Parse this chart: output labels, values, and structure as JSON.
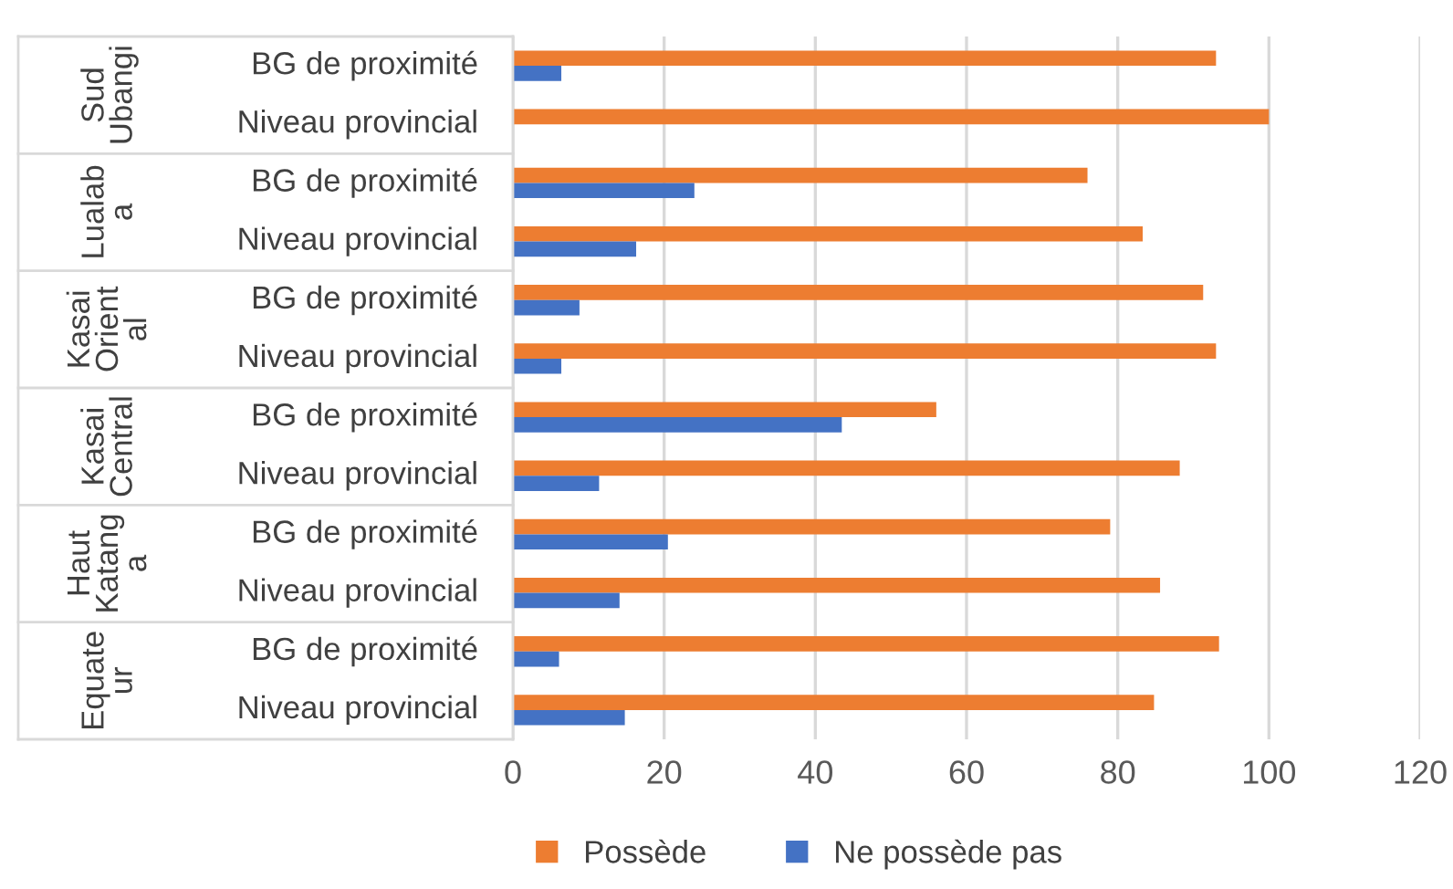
{
  "chart_data": {
    "type": "bar",
    "orientation": "horizontal",
    "categories": [
      "BG de proximité",
      "Niveau provincial",
      "BG de proximité",
      "Niveau provincial",
      "BG de proximité",
      "Niveau provincial",
      "BG de proximité",
      "Niveau provincial",
      "BG de proximité",
      "Niveau provincial",
      "BG de proximité",
      "Niveau provincial"
    ],
    "series": [
      {
        "name": "Possède",
        "color": "#ed7d31",
        "values": [
          93,
          100,
          76,
          83.3,
          91.3,
          93,
          56,
          88.2,
          79,
          85.6,
          93.4,
          84.8
        ]
      },
      {
        "name": "Ne possède pas",
        "color": "#4472c4",
        "values": [
          6.4,
          0,
          24,
          16.3,
          8.8,
          6.4,
          43.5,
          11.4,
          20.5,
          14.1,
          6.1,
          14.8
        ]
      }
    ],
    "annotations": [
      "Sud\nUbangi",
      "Lualab\na",
      "Kasai\nOrient\nal",
      "Kasai\nCentral",
      "Haut\nKatang\na",
      "Equate\nur"
    ],
    "xlim": [
      0,
      120
    ],
    "xticks": [
      0,
      20,
      40,
      60,
      80,
      100,
      120
    ],
    "grid": "x",
    "legend": "bottom"
  }
}
